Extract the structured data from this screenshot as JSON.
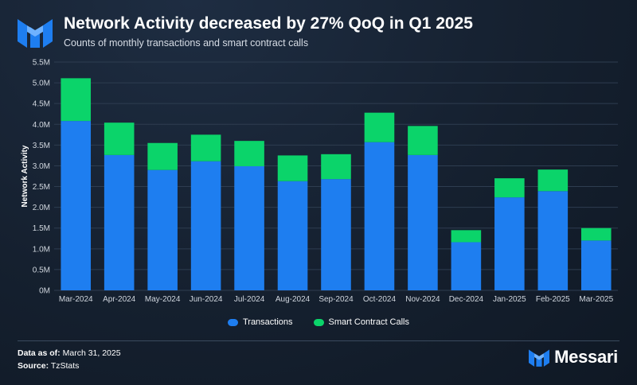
{
  "header": {
    "title": "Network Activity decreased by 27% QoQ in Q1 2025",
    "subtitle": "Counts of monthly transactions and smart contract calls"
  },
  "colors": {
    "transactions": "#1e7ef0",
    "smart_contract_calls": "#0bd46a",
    "grid": "#2e3d50",
    "axis_text": "#d0d6de"
  },
  "chart_data": {
    "type": "bar",
    "stacked": true,
    "title": "Network Activity decreased by 27% QoQ in Q1 2025",
    "subtitle": "Counts of monthly transactions and smart contract calls",
    "xlabel": "",
    "ylabel": "Network Activity",
    "ylim": [
      0,
      5500000
    ],
    "yticks": [
      0,
      500000,
      1000000,
      1500000,
      2000000,
      2500000,
      3000000,
      3500000,
      4000000,
      4500000,
      5000000,
      5500000
    ],
    "ytick_labels": [
      "0M",
      "0.5M",
      "1.0M",
      "1.5M",
      "2.0M",
      "2.5M",
      "3.0M",
      "3.5M",
      "4.0M",
      "4.5M",
      "5.0M",
      "5.5M"
    ],
    "categories": [
      "Mar-2024",
      "Apr-2024",
      "May-2024",
      "Jun-2024",
      "Jul-2024",
      "Aug-2024",
      "Sep-2024",
      "Oct-2024",
      "Nov-2024",
      "Dec-2024",
      "Jan-2025",
      "Feb-2025",
      "Mar-2025"
    ],
    "series": [
      {
        "name": "Transactions",
        "values": [
          4080000,
          3260000,
          2900000,
          3110000,
          2990000,
          2630000,
          2680000,
          3570000,
          3260000,
          1160000,
          2240000,
          2390000,
          1200000
        ]
      },
      {
        "name": "Smart Contract Calls",
        "values": [
          1030000,
          780000,
          650000,
          640000,
          610000,
          620000,
          600000,
          710000,
          700000,
          290000,
          460000,
          520000,
          300000
        ]
      }
    ],
    "legend": [
      "Transactions",
      "Smart Contract Calls"
    ],
    "legend_position": "bottom-center",
    "grid": true
  },
  "footer": {
    "as_of_label": "Data as of:",
    "as_of_value": "March 31, 2025",
    "source_label": "Source:",
    "source_value": "TzStats",
    "brand": "Messari"
  }
}
